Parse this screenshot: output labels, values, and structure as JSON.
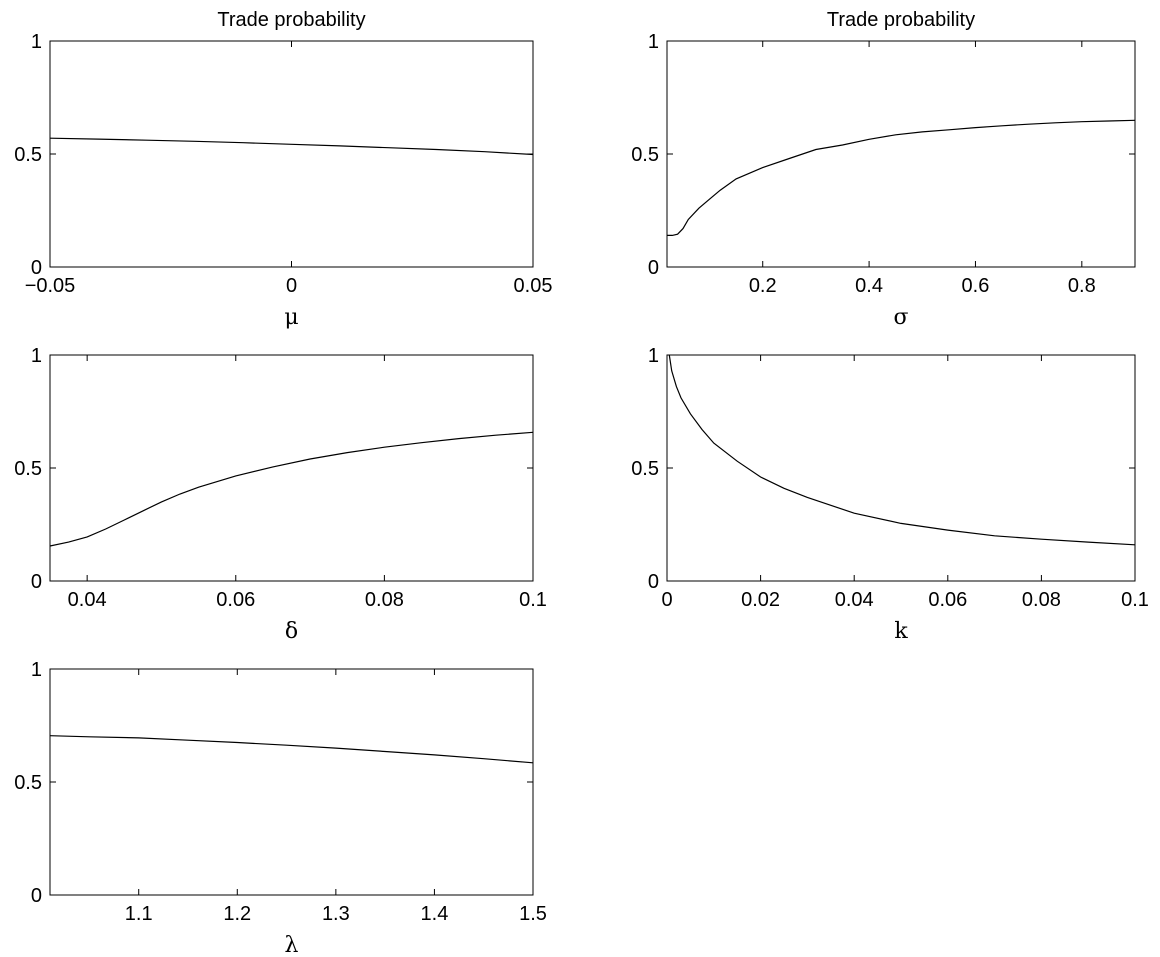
{
  "chart_data": [
    {
      "type": "line",
      "title": "Trade probability",
      "xlabel": "μ",
      "ylabel": "",
      "xlim": [
        -0.05,
        0.05
      ],
      "ylim": [
        0,
        1
      ],
      "xticks": [
        -0.05,
        0,
        0.05
      ],
      "xtick_labels": [
        "−0.05",
        "0",
        "0.05"
      ],
      "yticks": [
        0,
        0.5,
        1
      ],
      "ytick_labels": [
        "0",
        "0.5",
        "1"
      ],
      "grid": false,
      "series": [
        {
          "x": [
            -0.05,
            -0.04,
            -0.03,
            -0.02,
            -0.01,
            0,
            0.01,
            0.02,
            0.03,
            0.04,
            0.05
          ],
          "y": [
            0.57,
            0.566,
            0.561,
            0.556,
            0.55,
            0.543,
            0.536,
            0.528,
            0.52,
            0.51,
            0.498
          ]
        }
      ]
    },
    {
      "type": "line",
      "title": "Trade probability",
      "xlabel": "σ",
      "ylabel": "",
      "xlim": [
        0.02,
        0.9
      ],
      "ylim": [
        0,
        1
      ],
      "xticks": [
        0.2,
        0.4,
        0.6,
        0.8
      ],
      "xtick_labels": [
        "0.2",
        "0.4",
        "0.6",
        "0.8"
      ],
      "yticks": [
        0,
        0.5,
        1
      ],
      "ytick_labels": [
        "0",
        "0.5",
        "1"
      ],
      "grid": false,
      "series": [
        {
          "x": [
            0.02,
            0.03,
            0.04,
            0.05,
            0.06,
            0.08,
            0.1,
            0.12,
            0.15,
            0.2,
            0.25,
            0.3,
            0.35,
            0.4,
            0.45,
            0.5,
            0.55,
            0.6,
            0.65,
            0.7,
            0.75,
            0.8,
            0.85,
            0.9
          ],
          "y": [
            0.14,
            0.14,
            0.145,
            0.17,
            0.21,
            0.26,
            0.3,
            0.34,
            0.39,
            0.44,
            0.48,
            0.52,
            0.54,
            0.565,
            0.585,
            0.598,
            0.607,
            0.617,
            0.625,
            0.632,
            0.638,
            0.643,
            0.646,
            0.649
          ]
        }
      ]
    },
    {
      "type": "line",
      "title": "",
      "xlabel": "δ",
      "ylabel": "",
      "xlim": [
        0.035,
        0.1
      ],
      "ylim": [
        0,
        1
      ],
      "xticks": [
        0.04,
        0.06,
        0.08,
        0.1
      ],
      "xtick_labels": [
        "0.04",
        "0.06",
        "0.08",
        "0.1"
      ],
      "yticks": [
        0,
        0.5,
        1
      ],
      "ytick_labels": [
        "0",
        "0.5",
        "1"
      ],
      "grid": false,
      "series": [
        {
          "x": [
            0.035,
            0.0375,
            0.04,
            0.0425,
            0.045,
            0.0475,
            0.05,
            0.0525,
            0.055,
            0.06,
            0.065,
            0.07,
            0.075,
            0.08,
            0.085,
            0.09,
            0.095,
            0.1
          ],
          "y": [
            0.155,
            0.172,
            0.195,
            0.23,
            0.27,
            0.31,
            0.35,
            0.385,
            0.415,
            0.465,
            0.505,
            0.54,
            0.568,
            0.592,
            0.612,
            0.63,
            0.645,
            0.658
          ]
        }
      ]
    },
    {
      "type": "line",
      "title": "",
      "xlabel": "k",
      "ylabel": "",
      "xlim": [
        0,
        0.1
      ],
      "ylim": [
        0,
        1
      ],
      "xticks": [
        0,
        0.02,
        0.04,
        0.06,
        0.08,
        0.1
      ],
      "xtick_labels": [
        "0",
        "0.02",
        "0.04",
        "0.06",
        "0.08",
        "0.1"
      ],
      "yticks": [
        0,
        0.5,
        1
      ],
      "ytick_labels": [
        "0",
        "0.5",
        "1"
      ],
      "grid": false,
      "series": [
        {
          "x": [
            0.0005,
            0.001,
            0.002,
            0.003,
            0.005,
            0.0075,
            0.01,
            0.015,
            0.02,
            0.025,
            0.03,
            0.04,
            0.05,
            0.06,
            0.07,
            0.08,
            0.09,
            0.1
          ],
          "y": [
            1.0,
            0.93,
            0.86,
            0.81,
            0.74,
            0.67,
            0.61,
            0.53,
            0.46,
            0.41,
            0.37,
            0.3,
            0.255,
            0.225,
            0.2,
            0.185,
            0.172,
            0.16
          ]
        }
      ]
    },
    {
      "type": "line",
      "title": "",
      "xlabel": "λ",
      "ylabel": "",
      "xlim": [
        1.01,
        1.5
      ],
      "ylim": [
        0,
        1
      ],
      "xticks": [
        1.1,
        1.2,
        1.3,
        1.4,
        1.5
      ],
      "xtick_labels": [
        "1.1",
        "1.2",
        "1.3",
        "1.4",
        "1.5"
      ],
      "yticks": [
        0,
        0.5,
        1
      ],
      "ytick_labels": [
        "0",
        "0.5",
        "1"
      ],
      "grid": false,
      "series": [
        {
          "x": [
            1.01,
            1.05,
            1.1,
            1.15,
            1.2,
            1.25,
            1.3,
            1.35,
            1.4,
            1.45,
            1.5
          ],
          "y": [
            0.705,
            0.7,
            0.695,
            0.685,
            0.675,
            0.663,
            0.65,
            0.635,
            0.62,
            0.603,
            0.585
          ]
        }
      ]
    }
  ]
}
